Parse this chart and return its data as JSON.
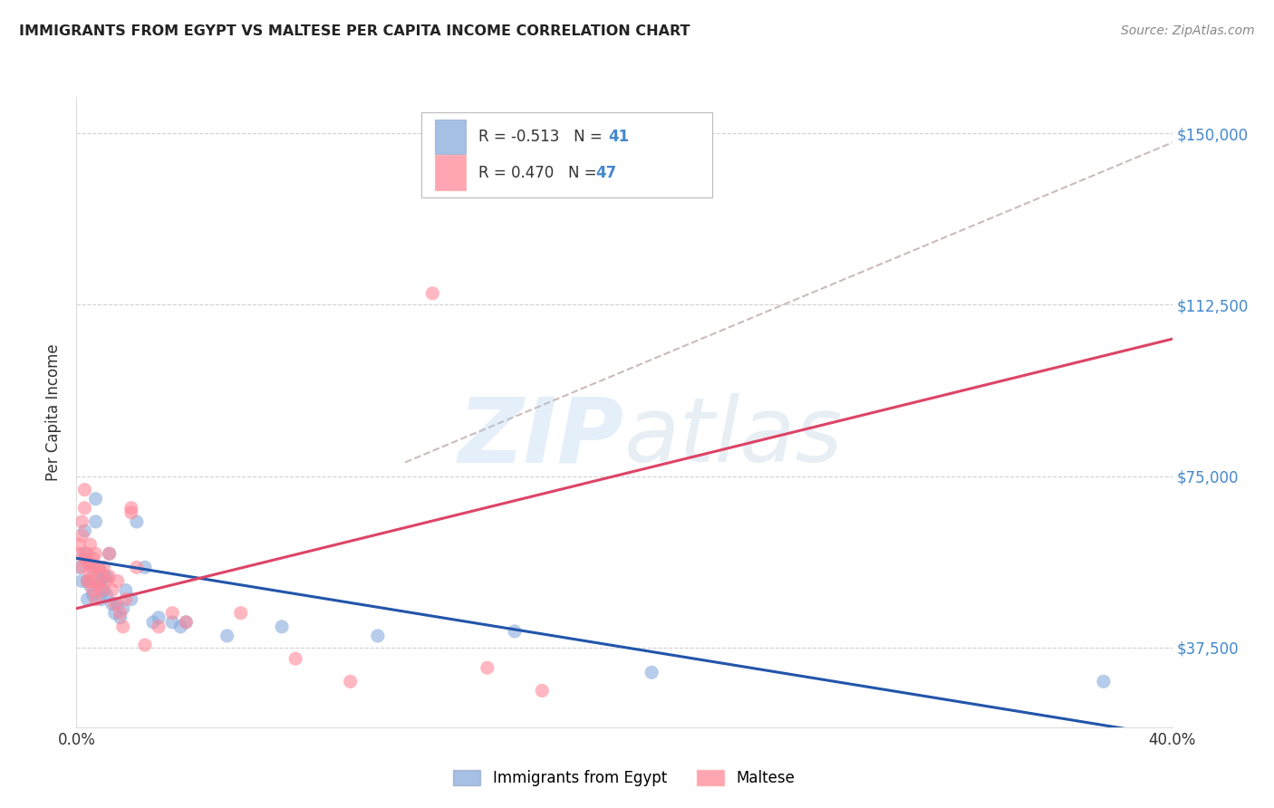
{
  "title": "IMMIGRANTS FROM EGYPT VS MALTESE PER CAPITA INCOME CORRELATION CHART",
  "source": "Source: ZipAtlas.com",
  "ylabel": "Per Capita Income",
  "legend_label_blue": "Immigrants from Egypt",
  "legend_label_pink": "Maltese",
  "xlim": [
    0.0,
    0.4
  ],
  "ylim": [
    20000,
    158000
  ],
  "yticks": [
    37500,
    75000,
    112500,
    150000
  ],
  "ytick_labels": [
    "$37,500",
    "$75,000",
    "$112,500",
    "$150,000"
  ],
  "axis_label_color": "#4488CC",
  "blue_color": "#88AADD",
  "pink_color": "#FF8899",
  "blue_line_color": "#2255AA",
  "pink_line_color": "#DD4466",
  "dashed_line_color": "#CCBBBB",
  "blue_scatter": [
    [
      0.001,
      55000
    ],
    [
      0.002,
      52000
    ],
    [
      0.003,
      58000
    ],
    [
      0.003,
      63000
    ],
    [
      0.004,
      48000
    ],
    [
      0.004,
      52000
    ],
    [
      0.005,
      56000
    ],
    [
      0.005,
      51000
    ],
    [
      0.006,
      53000
    ],
    [
      0.006,
      49000
    ],
    [
      0.007,
      70000
    ],
    [
      0.007,
      65000
    ],
    [
      0.008,
      55000
    ],
    [
      0.008,
      51000
    ],
    [
      0.009,
      48000
    ],
    [
      0.009,
      52000
    ],
    [
      0.01,
      53000
    ],
    [
      0.01,
      50000
    ],
    [
      0.011,
      49000
    ],
    [
      0.011,
      53000
    ],
    [
      0.012,
      58000
    ],
    [
      0.013,
      47000
    ],
    [
      0.014,
      45000
    ],
    [
      0.015,
      47000
    ],
    [
      0.016,
      44000
    ],
    [
      0.017,
      46000
    ],
    [
      0.018,
      50000
    ],
    [
      0.02,
      48000
    ],
    [
      0.022,
      65000
    ],
    [
      0.025,
      55000
    ],
    [
      0.028,
      43000
    ],
    [
      0.03,
      44000
    ],
    [
      0.035,
      43000
    ],
    [
      0.038,
      42000
    ],
    [
      0.04,
      43000
    ],
    [
      0.055,
      40000
    ],
    [
      0.075,
      42000
    ],
    [
      0.11,
      40000
    ],
    [
      0.16,
      41000
    ],
    [
      0.21,
      32000
    ],
    [
      0.375,
      30000
    ]
  ],
  "pink_scatter": [
    [
      0.001,
      58000
    ],
    [
      0.001,
      60000
    ],
    [
      0.002,
      65000
    ],
    [
      0.002,
      62000
    ],
    [
      0.002,
      55000
    ],
    [
      0.003,
      72000
    ],
    [
      0.003,
      68000
    ],
    [
      0.003,
      57000
    ],
    [
      0.004,
      56000
    ],
    [
      0.004,
      52000
    ],
    [
      0.004,
      58000
    ],
    [
      0.005,
      60000
    ],
    [
      0.005,
      54000
    ],
    [
      0.005,
      52000
    ],
    [
      0.006,
      57000
    ],
    [
      0.006,
      55000
    ],
    [
      0.006,
      50000
    ],
    [
      0.007,
      58000
    ],
    [
      0.007,
      52000
    ],
    [
      0.007,
      48000
    ],
    [
      0.008,
      55000
    ],
    [
      0.008,
      51000
    ],
    [
      0.009,
      54000
    ],
    [
      0.009,
      50000
    ],
    [
      0.01,
      55000
    ],
    [
      0.011,
      52000
    ],
    [
      0.012,
      58000
    ],
    [
      0.012,
      53000
    ],
    [
      0.013,
      50000
    ],
    [
      0.014,
      47000
    ],
    [
      0.015,
      52000
    ],
    [
      0.016,
      45000
    ],
    [
      0.017,
      42000
    ],
    [
      0.018,
      48000
    ],
    [
      0.02,
      67000
    ],
    [
      0.022,
      55000
    ],
    [
      0.025,
      38000
    ],
    [
      0.03,
      42000
    ],
    [
      0.035,
      45000
    ],
    [
      0.04,
      43000
    ],
    [
      0.06,
      45000
    ],
    [
      0.08,
      35000
    ],
    [
      0.1,
      30000
    ],
    [
      0.13,
      115000
    ],
    [
      0.15,
      33000
    ],
    [
      0.17,
      28000
    ],
    [
      0.02,
      68000
    ]
  ],
  "blue_line": [
    [
      0.0,
      57000
    ],
    [
      0.4,
      18000
    ]
  ],
  "pink_line": [
    [
      0.0,
      46000
    ],
    [
      0.4,
      105000
    ]
  ],
  "dashed_line": [
    [
      0.12,
      78000
    ],
    [
      0.4,
      148000
    ]
  ]
}
